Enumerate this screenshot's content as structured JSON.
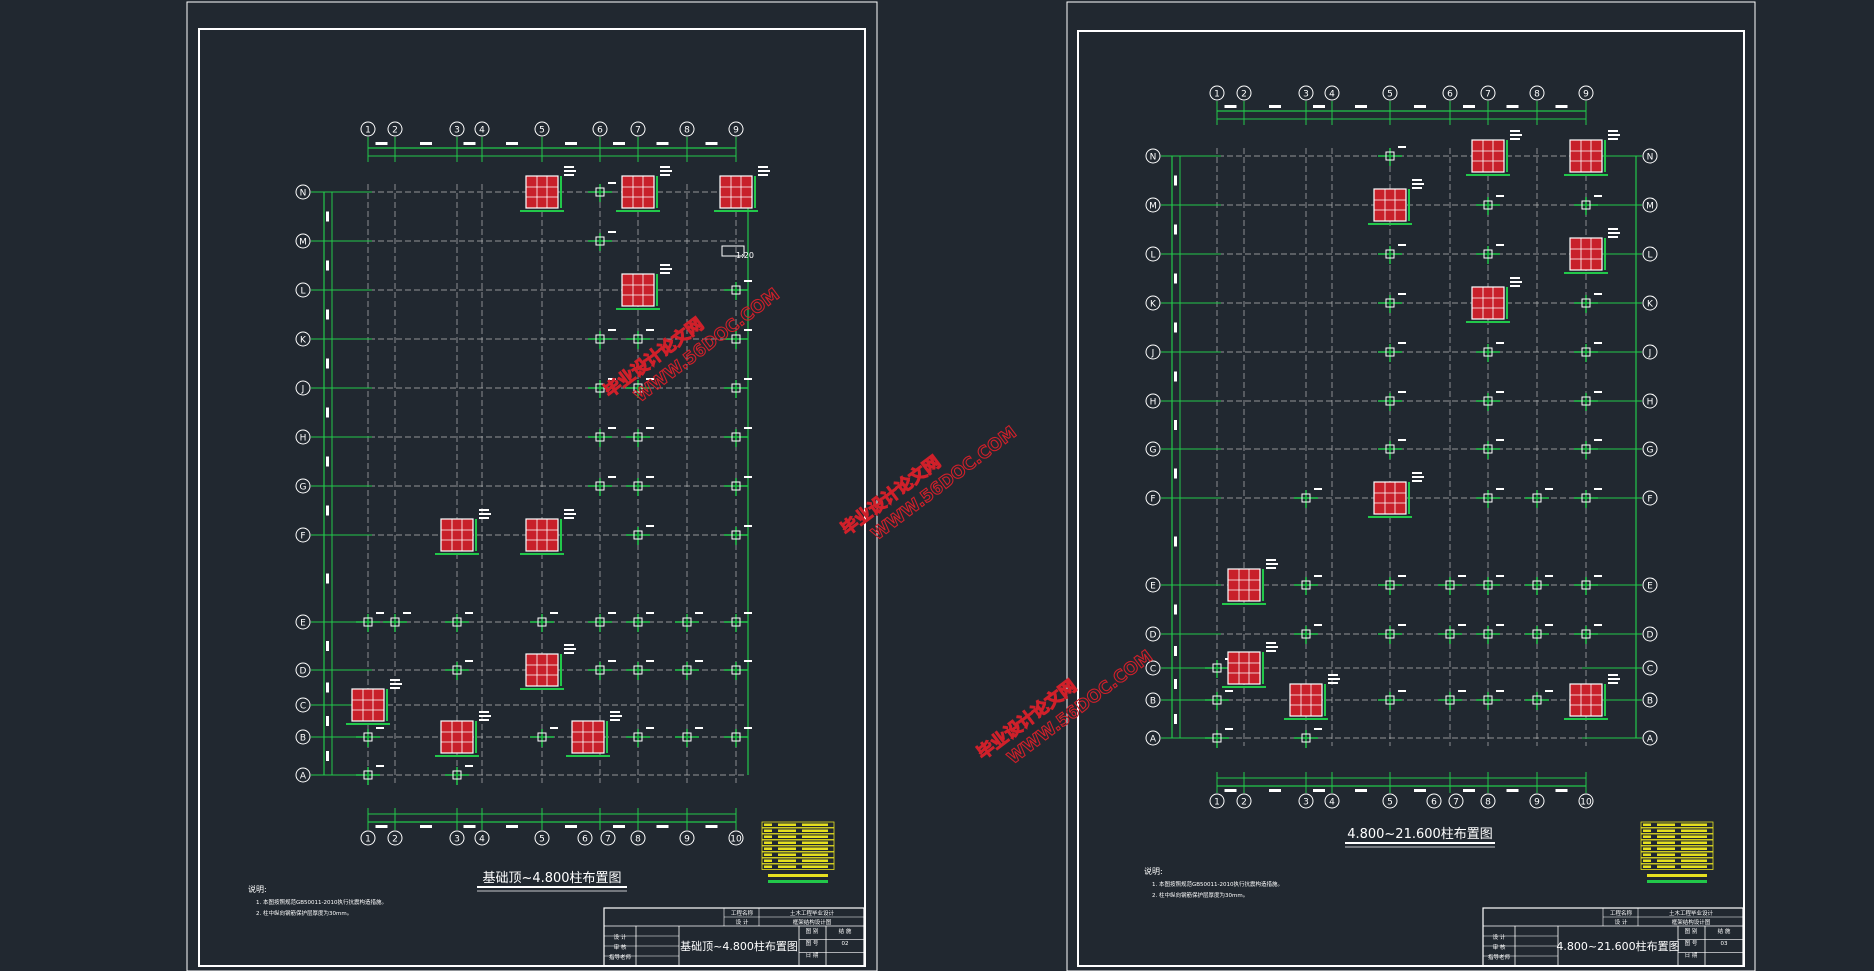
{
  "left_sheet": {
    "title": "基础顶~4.800柱布置图",
    "col_axes_top": [
      "1",
      "2",
      "3",
      "4",
      "5",
      "6",
      "7",
      "8",
      "9"
    ],
    "col_axes_bottom": [
      "1",
      "2",
      "3",
      "4",
      "5",
      "6",
      "7",
      "8",
      "9",
      "10"
    ],
    "row_axes": [
      "N",
      "M",
      "L",
      "K",
      "J",
      "H",
      "G",
      "F",
      "E",
      "D",
      "C",
      "B",
      "A"
    ],
    "detail_label": "1:20",
    "notes_title": "说明:",
    "notes": [
      "1. 本图按照规范GB50011-2010执行抗震构造措施。",
      "2. 柱中纵向钢筋保护层厚度为30mm。"
    ],
    "title_block": {
      "project_label": "工程名称",
      "project_value": "土木工程毕业设计",
      "dept_label": "设 计",
      "subject": "框架结构设计图",
      "rows": [
        "设 计",
        "审 核",
        "指导老师"
      ],
      "sheet_title": "基础顶~4.800柱布置图",
      "meta_labels": [
        "图 别",
        "结 施",
        "图 号",
        "02",
        "日 期"
      ]
    }
  },
  "right_sheet": {
    "title": "4.800~21.600柱布置图",
    "col_axes_top": [
      "1",
      "2",
      "3",
      "4",
      "5",
      "6",
      "7",
      "8",
      "9"
    ],
    "col_axes_bottom": [
      "1",
      "2",
      "3",
      "4",
      "5",
      "6",
      "7",
      "8",
      "9",
      "10"
    ],
    "row_axes": [
      "N",
      "M",
      "L",
      "K",
      "J",
      "H",
      "G",
      "F",
      "E",
      "D",
      "C",
      "B",
      "A"
    ],
    "notes_title": "说明:",
    "notes": [
      "1. 本图按照规范GB50011-2010执行抗震构造措施。",
      "2. 柱中纵向钢筋保护层厚度为30mm。"
    ],
    "title_block": {
      "project_label": "工程名称",
      "project_value": "土木工程毕业设计",
      "dept_label": "设 计",
      "subject": "框架结构设计图",
      "rows": [
        "设 计",
        "审 核",
        "指导老师"
      ],
      "sheet_title": "4.800~21.600柱布置图",
      "meta_labels": [
        "图 别",
        "结 施",
        "图 号",
        "03",
        "日 期"
      ]
    }
  },
  "watermarks": [
    {
      "line1": "毕业设计论文网",
      "line2": "WWW.56DOC.COM"
    },
    {
      "line1": "毕业设计论文网",
      "line2": "WWW.56DOC.COM"
    },
    {
      "line1": "毕业设计论文网",
      "line2": "WWW.56DOC.COM"
    }
  ],
  "colors": {
    "background": "#212830",
    "frame": "#ffffff",
    "axis": "#22c84a",
    "grid": "#b8b8b8",
    "column": "#c8202a",
    "table": "#e6e020"
  }
}
